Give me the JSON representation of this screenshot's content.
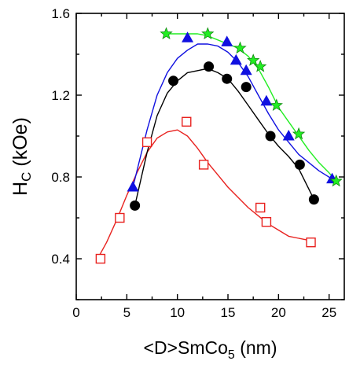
{
  "chart_data": {
    "type": "scatter",
    "title": "",
    "xlabel": {
      "prefix": "<D>",
      "main": "SmCo",
      "sub": "5",
      "unit": " (nm)"
    },
    "ylabel": {
      "main": "H",
      "sub": "C",
      "unit": " (kOe)"
    },
    "xlim": [
      0,
      26.5
    ],
    "ylim": [
      0.2,
      1.6
    ],
    "xticks": [
      0,
      5,
      10,
      15,
      20,
      25
    ],
    "xtick_labels": [
      "0",
      "5",
      "10",
      "15",
      "20",
      "25"
    ],
    "yticks": [
      0.4,
      0.8,
      1.2,
      1.6
    ],
    "ytick_labels": [
      "0.4",
      "0.8",
      "1.2",
      "1.6"
    ],
    "grid": false,
    "series": [
      {
        "marker": "open-square",
        "color": "#e8221f",
        "points": [
          [
            2.4,
            0.4
          ],
          [
            4.3,
            0.6
          ],
          [
            7.0,
            0.97
          ],
          [
            10.9,
            1.07
          ],
          [
            12.6,
            0.86
          ],
          [
            18.2,
            0.65
          ],
          [
            18.8,
            0.58
          ],
          [
            23.2,
            0.48
          ]
        ],
        "curve": [
          [
            2.0,
            0.39
          ],
          [
            3.0,
            0.48
          ],
          [
            4.0,
            0.59
          ],
          [
            5.0,
            0.71
          ],
          [
            6.0,
            0.82
          ],
          [
            7.0,
            0.92
          ],
          [
            8.0,
            0.99
          ],
          [
            9.0,
            1.02
          ],
          [
            10.0,
            1.03
          ],
          [
            11.0,
            1.0
          ],
          [
            12.0,
            0.94
          ],
          [
            13.0,
            0.87
          ],
          [
            14.0,
            0.81
          ],
          [
            15.0,
            0.75
          ],
          [
            16.0,
            0.7
          ],
          [
            17.0,
            0.65
          ],
          [
            18.0,
            0.61
          ],
          [
            19.0,
            0.57
          ],
          [
            20.0,
            0.54
          ],
          [
            21.0,
            0.51
          ],
          [
            22.0,
            0.5
          ],
          [
            23.0,
            0.49
          ]
        ]
      },
      {
        "marker": "filled-circle",
        "color": "#000000",
        "points": [
          [
            5.8,
            0.66
          ],
          [
            9.6,
            1.27
          ],
          [
            13.1,
            1.34
          ],
          [
            14.9,
            1.28
          ],
          [
            16.8,
            1.24
          ],
          [
            19.2,
            1.0
          ],
          [
            22.1,
            0.86
          ],
          [
            23.5,
            0.69
          ]
        ],
        "curve": [
          [
            5.8,
            0.66
          ],
          [
            7.0,
            0.92
          ],
          [
            8.0,
            1.1
          ],
          [
            9.0,
            1.21
          ],
          [
            10.0,
            1.27
          ],
          [
            11.0,
            1.31
          ],
          [
            12.0,
            1.32
          ],
          [
            13.0,
            1.33
          ],
          [
            14.0,
            1.31
          ],
          [
            15.0,
            1.28
          ],
          [
            16.0,
            1.22
          ],
          [
            17.0,
            1.15
          ],
          [
            18.0,
            1.08
          ],
          [
            19.0,
            1.01
          ],
          [
            20.0,
            0.95
          ],
          [
            21.0,
            0.9
          ],
          [
            22.0,
            0.84
          ],
          [
            23.0,
            0.74
          ],
          [
            23.6,
            0.68
          ]
        ]
      },
      {
        "marker": "filled-triangle",
        "color": "#1010e0",
        "points": [
          [
            5.6,
            0.75
          ],
          [
            11.0,
            1.48
          ],
          [
            14.9,
            1.46
          ],
          [
            15.8,
            1.37
          ],
          [
            16.8,
            1.32
          ],
          [
            18.8,
            1.17
          ],
          [
            21.0,
            1.0
          ],
          [
            25.3,
            0.79
          ]
        ],
        "curve": [
          [
            5.6,
            0.75
          ],
          [
            7.0,
            1.03
          ],
          [
            8.0,
            1.2
          ],
          [
            9.0,
            1.31
          ],
          [
            10.0,
            1.38
          ],
          [
            11.0,
            1.42
          ],
          [
            12.0,
            1.45
          ],
          [
            13.0,
            1.45
          ],
          [
            14.0,
            1.44
          ],
          [
            15.0,
            1.41
          ],
          [
            16.0,
            1.36
          ],
          [
            17.0,
            1.29
          ],
          [
            18.0,
            1.2
          ],
          [
            19.0,
            1.11
          ],
          [
            20.0,
            1.03
          ],
          [
            21.0,
            0.97
          ],
          [
            22.0,
            0.91
          ],
          [
            23.0,
            0.87
          ],
          [
            24.0,
            0.83
          ],
          [
            25.3,
            0.79
          ]
        ]
      },
      {
        "marker": "filled-star",
        "color": "#22ee22",
        "points": [
          [
            8.9,
            1.5
          ],
          [
            13.0,
            1.5
          ],
          [
            16.2,
            1.43
          ],
          [
            17.5,
            1.37
          ],
          [
            18.2,
            1.34
          ],
          [
            19.8,
            1.15
          ],
          [
            22.0,
            1.01
          ],
          [
            25.7,
            0.78
          ]
        ],
        "curve": [
          [
            8.9,
            1.5
          ],
          [
            10.0,
            1.5
          ],
          [
            11.0,
            1.5
          ],
          [
            12.0,
            1.5
          ],
          [
            13.0,
            1.49
          ],
          [
            14.0,
            1.47
          ],
          [
            15.0,
            1.45
          ],
          [
            16.0,
            1.43
          ],
          [
            17.0,
            1.39
          ],
          [
            18.0,
            1.33
          ],
          [
            19.0,
            1.24
          ],
          [
            20.0,
            1.14
          ],
          [
            21.0,
            1.07
          ],
          [
            22.0,
            1.0
          ],
          [
            23.0,
            0.93
          ],
          [
            24.0,
            0.87
          ],
          [
            25.0,
            0.82
          ],
          [
            25.7,
            0.78
          ]
        ]
      }
    ]
  }
}
